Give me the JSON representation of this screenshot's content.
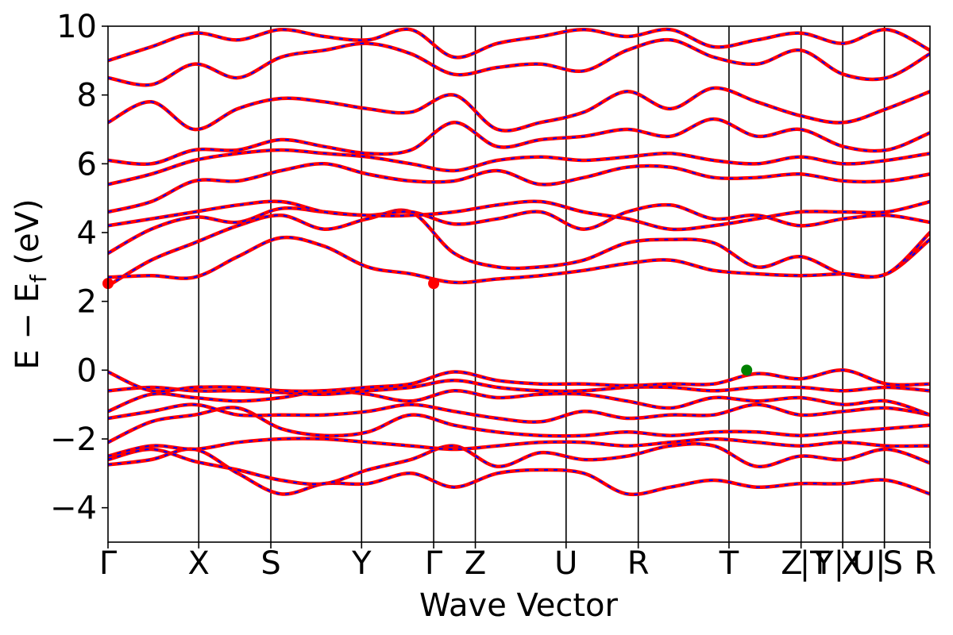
{
  "chart_data": {
    "type": "line",
    "title": "",
    "xlabel": "Wave Vector",
    "ylabel_main": "E − E",
    "ylabel_sub": "f",
    "ylabel_unit": " (eV)",
    "ylim": [
      -5,
      10
    ],
    "yticks": [
      -4,
      -2,
      0,
      2,
      4,
      6,
      8,
      10
    ],
    "xlim": [
      0,
      1
    ],
    "kpoints": [
      {
        "label": "Γ",
        "x": 0.0
      },
      {
        "label": "X",
        "x": 0.1104
      },
      {
        "label": "S",
        "x": 0.1981
      },
      {
        "label": "Y",
        "x": 0.3085
      },
      {
        "label": "Γ",
        "x": 0.3962
      },
      {
        "label": "Z",
        "x": 0.4469
      },
      {
        "label": "U",
        "x": 0.5573
      },
      {
        "label": "R",
        "x": 0.6451
      },
      {
        "label": "T",
        "x": 0.7555
      },
      {
        "label": "Z",
        "x": 0.8432
      },
      {
        "label": "|T",
        "x": 0.8432
      },
      {
        "label": "Y|",
        "x": 0.8939
      },
      {
        "label": "X",
        "x": 0.8939
      },
      {
        "label": "U|",
        "x": 0.9446
      },
      {
        "label": "S",
        "x": 0.9446
      },
      {
        "label": "R",
        "x": 1.0
      }
    ],
    "vbm": {
      "x": 0.777,
      "energy": 0.0,
      "color": "#008000"
    },
    "cbm": {
      "x": 0.3962,
      "energy": 2.52,
      "color": "#ff0000"
    },
    "band_color": "#ff0000",
    "band_overlay_color": "#0000ff",
    "bands": [
      {
        "values": [
          -2.75,
          -2.6,
          -2.3,
          -3.0,
          -3.6,
          -3.3,
          -3.3,
          -3.0,
          -3.4,
          -3.0,
          -2.9,
          -3.0,
          -3.6,
          -3.4,
          -3.2,
          -3.4,
          -3.3,
          -3.3,
          -3.2,
          -3.6
        ]
      },
      {
        "values": [
          -2.6,
          -2.3,
          -2.65,
          -2.9,
          -3.2,
          -3.3,
          -2.9,
          -2.6,
          -2.2,
          -2.8,
          -2.4,
          -2.6,
          -2.5,
          -2.2,
          -2.2,
          -2.8,
          -2.5,
          -2.6,
          -2.3,
          -2.7
        ]
      },
      {
        "values": [
          -2.5,
          -2.2,
          -2.3,
          -2.1,
          -2.0,
          -2.0,
          -2.1,
          -2.2,
          -2.3,
          -2.2,
          -2.1,
          -2.1,
          -2.2,
          -2.1,
          -2.0,
          -2.1,
          -2.2,
          -2.1,
          -2.2,
          -2.2
        ]
      },
      {
        "values": [
          -2.1,
          -1.5,
          -1.3,
          -1.1,
          -1.7,
          -1.9,
          -1.8,
          -1.3,
          -1.6,
          -1.8,
          -1.9,
          -1.9,
          -1.8,
          -1.9,
          -1.8,
          -1.8,
          -1.9,
          -1.8,
          -1.7,
          -1.6
        ]
      },
      {
        "values": [
          -1.4,
          -1.2,
          -1.0,
          -1.3,
          -1.3,
          -1.3,
          -1.2,
          -1.0,
          -1.2,
          -1.4,
          -1.5,
          -1.2,
          -1.4,
          -1.3,
          -1.3,
          -1.0,
          -1.3,
          -1.2,
          -1.1,
          -1.3
        ]
      },
      {
        "values": [
          -1.2,
          -0.7,
          -0.8,
          -0.9,
          -0.8,
          -0.6,
          -0.7,
          -0.9,
          -0.6,
          -0.8,
          -0.7,
          -0.7,
          -0.9,
          -1.1,
          -0.8,
          -0.9,
          -0.8,
          -1.0,
          -0.9,
          -1.3
        ]
      },
      {
        "values": [
          -0.6,
          -0.5,
          -0.6,
          -0.6,
          -0.65,
          -0.7,
          -0.6,
          -0.5,
          -0.3,
          -0.5,
          -0.6,
          -0.6,
          -0.5,
          -0.5,
          -0.6,
          -0.5,
          -0.5,
          -0.6,
          -0.5,
          -0.6
        ]
      },
      {
        "values": [
          -0.05,
          -0.6,
          -0.5,
          -0.5,
          -0.6,
          -0.6,
          -0.5,
          -0.4,
          -0.05,
          -0.3,
          -0.4,
          -0.4,
          -0.45,
          -0.4,
          -0.4,
          -0.1,
          -0.25,
          -0.0,
          -0.4,
          -0.4
        ]
      },
      {
        "values": [
          2.45,
          3.2,
          3.7,
          4.2,
          4.5,
          4.1,
          4.4,
          4.6,
          3.4,
          3.0,
          3.0,
          3.2,
          3.7,
          3.8,
          3.7,
          3.0,
          3.3,
          2.8,
          2.8,
          3.8
        ]
      },
      {
        "values": [
          2.7,
          2.75,
          2.7,
          3.3,
          3.85,
          3.6,
          3.0,
          2.8,
          2.55,
          2.65,
          2.75,
          2.9,
          3.1,
          3.2,
          2.9,
          2.8,
          2.75,
          2.8,
          2.8,
          4.0
        ]
      },
      {
        "values": [
          3.4,
          4.1,
          4.45,
          4.3,
          4.7,
          4.6,
          4.5,
          4.6,
          4.25,
          4.4,
          4.6,
          4.1,
          4.6,
          4.8,
          4.4,
          4.5,
          4.2,
          4.4,
          4.5,
          4.3
        ]
      },
      {
        "values": [
          4.2,
          4.4,
          4.6,
          4.8,
          4.9,
          4.6,
          4.5,
          4.5,
          4.6,
          4.8,
          4.9,
          4.6,
          4.4,
          4.1,
          4.2,
          4.4,
          4.6,
          4.6,
          4.6,
          4.9
        ]
      },
      {
        "values": [
          4.6,
          4.9,
          5.5,
          5.5,
          5.8,
          6.0,
          5.7,
          5.5,
          5.5,
          5.8,
          5.4,
          5.6,
          5.9,
          5.9,
          5.6,
          5.6,
          5.7,
          5.5,
          5.5,
          5.7
        ]
      },
      {
        "values": [
          5.4,
          5.7,
          6.1,
          6.3,
          6.4,
          6.3,
          6.2,
          6.0,
          5.8,
          6.1,
          6.2,
          6.1,
          6.2,
          6.3,
          6.1,
          6.0,
          6.2,
          6.0,
          6.1,
          6.3
        ]
      },
      {
        "values": [
          6.1,
          6.0,
          6.4,
          6.4,
          6.7,
          6.5,
          6.3,
          6.4,
          7.2,
          6.5,
          6.7,
          6.8,
          7.0,
          6.8,
          7.3,
          6.8,
          7.0,
          6.5,
          6.4,
          6.9
        ]
      },
      {
        "values": [
          7.2,
          7.8,
          7.0,
          7.6,
          7.9,
          7.8,
          7.6,
          7.5,
          8.0,
          7.0,
          7.2,
          7.5,
          8.1,
          7.6,
          8.2,
          7.8,
          7.4,
          7.2,
          7.6,
          8.1
        ]
      },
      {
        "values": [
          8.5,
          8.3,
          8.9,
          8.5,
          9.1,
          9.3,
          9.5,
          9.2,
          8.6,
          8.8,
          8.9,
          8.7,
          9.3,
          9.6,
          9.1,
          8.9,
          9.3,
          8.6,
          8.5,
          9.2
        ]
      },
      {
        "values": [
          9.0,
          9.4,
          9.8,
          9.6,
          9.9,
          9.7,
          9.6,
          9.9,
          9.1,
          9.5,
          9.7,
          9.9,
          9.7,
          9.9,
          9.4,
          9.6,
          9.8,
          9.5,
          9.9,
          9.3
        ]
      }
    ]
  }
}
